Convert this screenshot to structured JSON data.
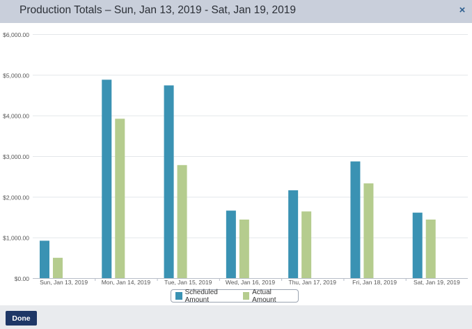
{
  "dialog": {
    "title": "Production Totals – Sun, Jan 13, 2019 - Sat, Jan 19, 2019",
    "close_icon": "×",
    "done_label": "Done"
  },
  "colors": {
    "scheduled": "#3a92b3",
    "actual": "#b5cc8e",
    "header_bg": "#c9cfdb",
    "done_bg": "#1e3766"
  },
  "chart_data": {
    "type": "bar",
    "categories": [
      "Sun, Jan 13, 2019",
      "Mon, Jan 14, 2019",
      "Tue, Jan 15, 2019",
      "Wed, Jan 16, 2019",
      "Thu, Jan 17, 2019",
      "Fri, Jan 18, 2019",
      "Sat, Jan 19, 2019"
    ],
    "series": [
      {
        "name": "Scheduled Amount",
        "values": [
          920,
          4880,
          4740,
          1660,
          2160,
          2870,
          1610
        ]
      },
      {
        "name": "Actual Amount",
        "values": [
          500,
          3920,
          2780,
          1440,
          1640,
          2330,
          1440
        ]
      }
    ],
    "yticks": [
      "$0.00",
      "$1,000.00",
      "$2,000.00",
      "$3,000.00",
      "$4,000.00",
      "$5,000.00",
      "$6,000.00"
    ],
    "ylim": [
      0,
      6000
    ],
    "grid": true,
    "legend_position": "bottom-center"
  }
}
